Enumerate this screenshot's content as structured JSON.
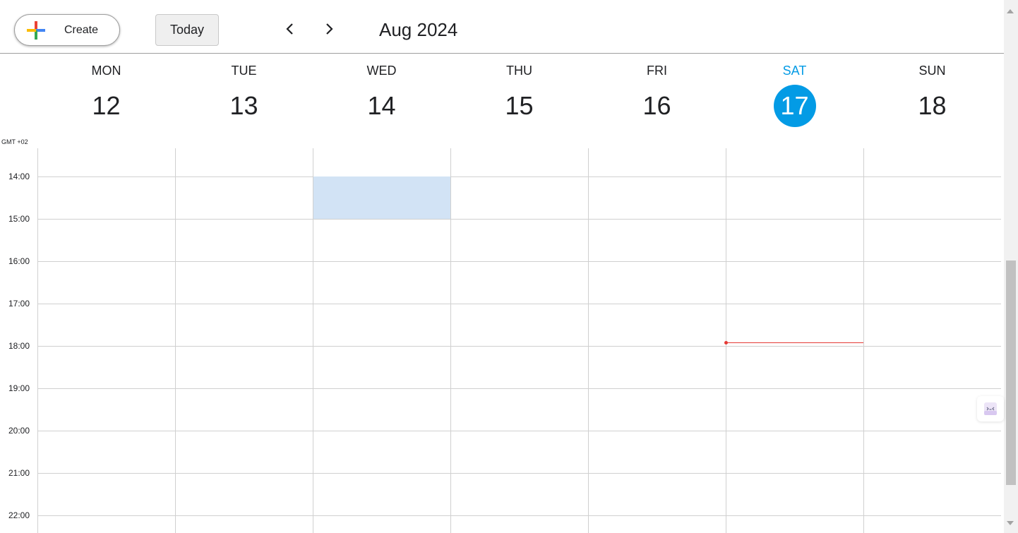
{
  "toolbar": {
    "create_label": "Create",
    "today_label": "Today",
    "month_title": "Aug 2024",
    "prev_icon": "chevron-left-icon",
    "next_icon": "chevron-right-icon"
  },
  "timezone_label": "GMT +02",
  "days": [
    {
      "name": "MON",
      "date": "12",
      "today": false
    },
    {
      "name": "TUE",
      "date": "13",
      "today": false
    },
    {
      "name": "WED",
      "date": "14",
      "today": false
    },
    {
      "name": "THU",
      "date": "15",
      "today": false
    },
    {
      "name": "FRI",
      "date": "16",
      "today": false
    },
    {
      "name": "SAT",
      "date": "17",
      "today": true
    },
    {
      "name": "SUN",
      "date": "18",
      "today": false
    }
  ],
  "hours": [
    "14:00",
    "15:00",
    "16:00",
    "17:00",
    "18:00",
    "19:00",
    "20:00",
    "21:00",
    "22:00"
  ],
  "colors": {
    "today_accent": "#039be5",
    "event_fill": "#d2e3f5",
    "current_time_line": "#e53935",
    "grid_line": "#d0d0d0"
  },
  "highlighted_slot": {
    "day": "WED",
    "start": "14:00",
    "end": "15:00"
  },
  "current_time_marker": {
    "day": "SAT",
    "time": "17:55"
  }
}
